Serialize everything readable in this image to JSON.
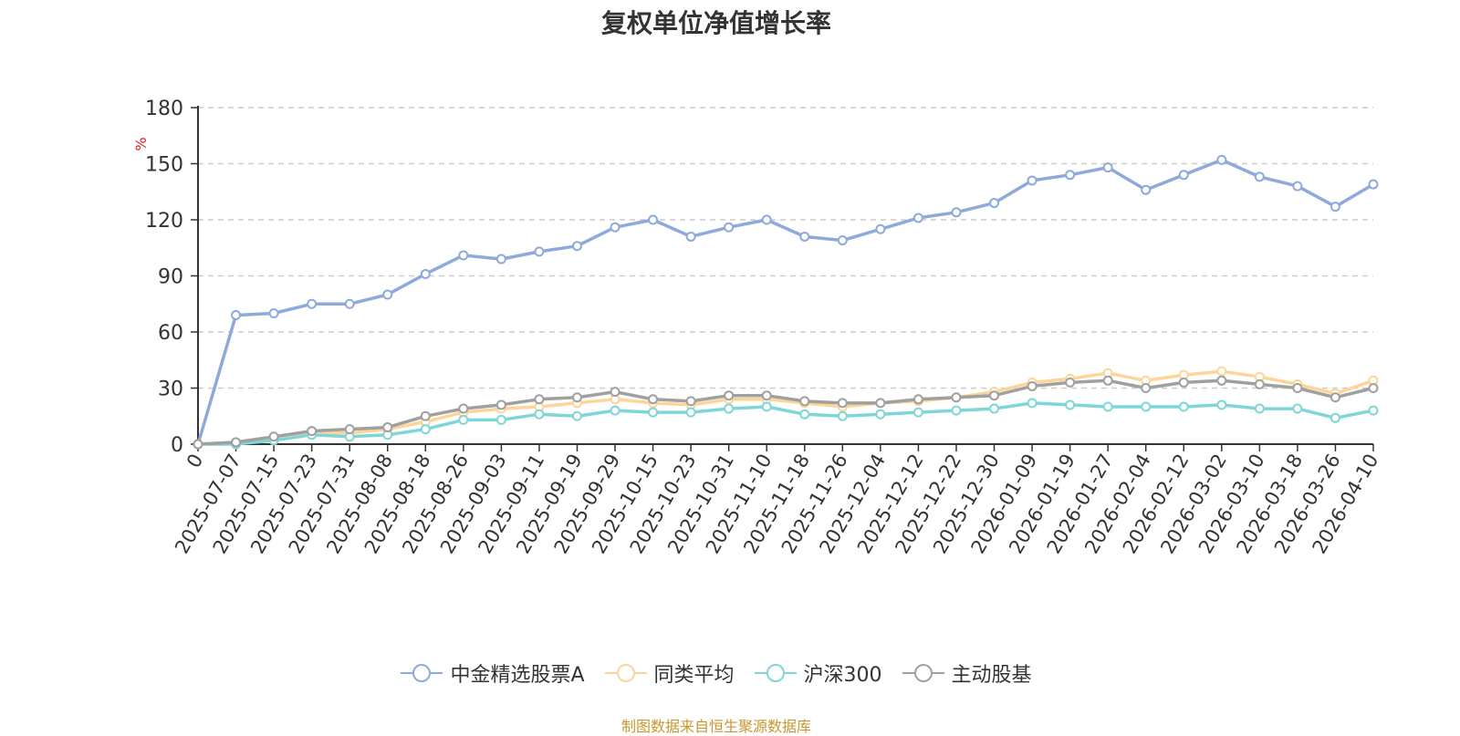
{
  "chart_data": {
    "type": "line",
    "title": "复权单位净值增长率",
    "ylabel": "%",
    "xlabel": "",
    "ylim": [
      0,
      180
    ],
    "yticks": [
      0,
      30,
      60,
      90,
      120,
      150,
      180
    ],
    "grid": true,
    "legend_position": "bottom",
    "x_tick_labels": [
      "0",
      "2025-07-07",
      "2025-07-15",
      "2025-07-23",
      "2025-07-31",
      "2025-08-08",
      "2025-08-18",
      "2025-08-26",
      "2025-09-03",
      "2025-09-11",
      "2025-09-19",
      "2025-09-29",
      "2025-10-15",
      "2025-10-23",
      "2025-10-31",
      "2025-11-10",
      "2025-11-18",
      "2025-11-26",
      "2025-12-04",
      "2025-12-12",
      "2025-12-22",
      "2025-12-30",
      "2026-01-09",
      "2026-01-19",
      "2026-01-27",
      "2026-02-04",
      "2026-02-12",
      "2026-03-02",
      "2026-03-10",
      "2026-03-18",
      "2026-03-26",
      "2026-04-10"
    ],
    "series": [
      {
        "name": "中金精选股票A",
        "color": "#8eaadb",
        "values": [
          0,
          69,
          70,
          75,
          75,
          80,
          91,
          101,
          99,
          103,
          106,
          116,
          120,
          111,
          116,
          120,
          111,
          109,
          115,
          121,
          124,
          129,
          141,
          144,
          148,
          136,
          144,
          152,
          143,
          138,
          127,
          139
        ]
      },
      {
        "name": "同类平均",
        "color": "#fcd699",
        "values": [
          0,
          1,
          3,
          6,
          6,
          8,
          12,
          17,
          19,
          20,
          22,
          24,
          22,
          21,
          24,
          24,
          22,
          20,
          22,
          23,
          25,
          28,
          33,
          35,
          38,
          34,
          37,
          39,
          36,
          32,
          27,
          34
        ]
      },
      {
        "name": "沪深300",
        "color": "#7fd6d6",
        "values": [
          0,
          0,
          2,
          5,
          4,
          5,
          8,
          13,
          13,
          16,
          15,
          18,
          17,
          17,
          19,
          20,
          16,
          15,
          16,
          17,
          18,
          19,
          22,
          21,
          20,
          20,
          20,
          21,
          19,
          19,
          14,
          18
        ]
      },
      {
        "name": "主动股基",
        "color": "#a0a0a0",
        "values": [
          0,
          1,
          4,
          7,
          8,
          9,
          15,
          19,
          21,
          24,
          25,
          28,
          24,
          23,
          26,
          26,
          23,
          22,
          22,
          24,
          25,
          26,
          31,
          33,
          34,
          30,
          33,
          34,
          32,
          30,
          25,
          30
        ]
      }
    ]
  },
  "source_note": "制图数据来自恒生聚源数据库"
}
